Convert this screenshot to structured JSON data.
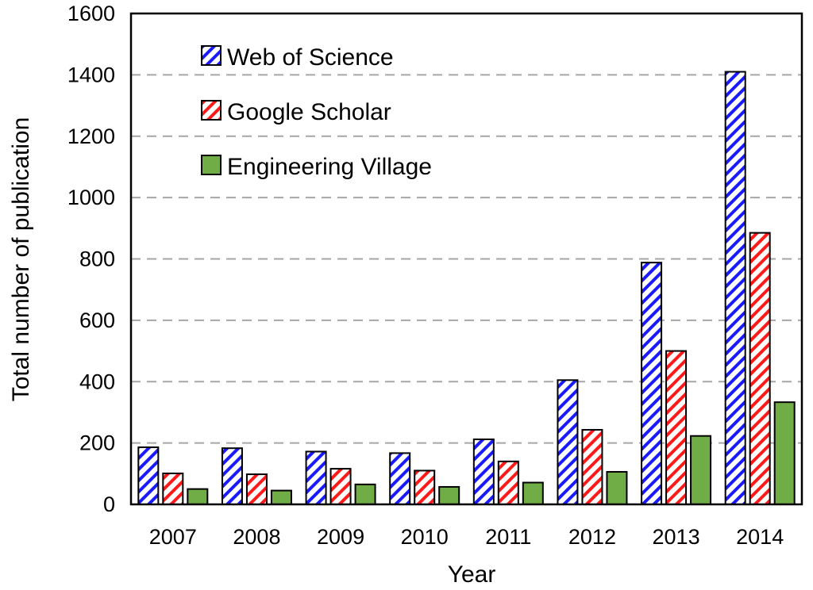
{
  "chart_data": {
    "type": "bar",
    "title": "",
    "xlabel": "Year",
    "ylabel": "Total number of publication",
    "categories": [
      "2007",
      "2008",
      "2009",
      "2010",
      "2011",
      "2012",
      "2013",
      "2014"
    ],
    "ylim": [
      0,
      1600
    ],
    "yticks": [
      0,
      200,
      400,
      600,
      800,
      1000,
      1200,
      1400,
      1600
    ],
    "grid": "horizontal dashed",
    "legend_position": "top-left",
    "series": [
      {
        "name": "Web of Science",
        "values": [
          186,
          183,
          172,
          167,
          212,
          405,
          788,
          1410
        ],
        "color": "#1a1aff",
        "fill": "diagonal-hatch"
      },
      {
        "name": "Google Scholar",
        "values": [
          101,
          98,
          116,
          110,
          140,
          243,
          500,
          885
        ],
        "color": "#ff1a1a",
        "fill": "diagonal-hatch"
      },
      {
        "name": "Engineering Village",
        "values": [
          50,
          45,
          65,
          57,
          71,
          106,
          223,
          333
        ],
        "color": "#70ad47",
        "fill": "solid"
      }
    ]
  }
}
